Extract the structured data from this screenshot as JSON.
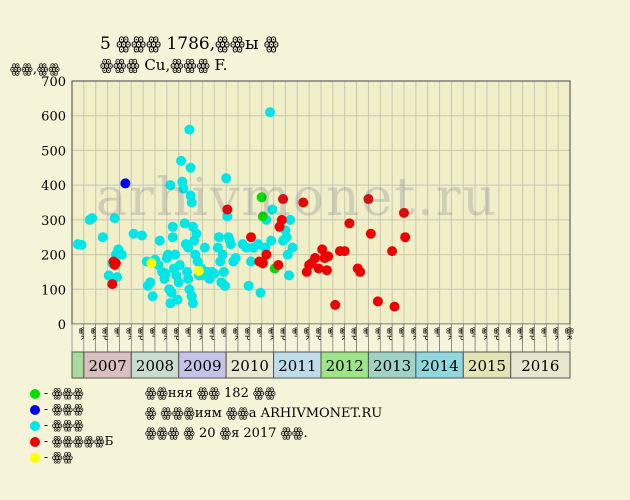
{
  "header": {
    "title": "5 ꙮꙮꙮ 1786,ꙮꙮы ꙮ",
    "subtitle": "ꙮꙮꙮ Cu,ꙮꙮꙮ F.",
    "ylabel": "ꙮꙮ,ꙮꙮ"
  },
  "watermark": "arhivmonet.ru",
  "legend": [
    {
      "label": "- ꙮꙮꙮ",
      "color": "#00dd00"
    },
    {
      "label": "- ꙮꙮꙮ",
      "color": "#0000ee"
    },
    {
      "label": "- ꙮꙮꙮ",
      "color": "#00e5e5"
    },
    {
      "label": "- ꙮꙮꙮꙮꙮБ",
      "color": "#ee0000"
    },
    {
      "label": "- ꙮꙮ",
      "color": "#ffff00"
    }
  ],
  "footer": {
    "line1": "ꙮꙮняя ꙮꙮ 182 ꙮꙮ",
    "line2": "ꙮ ꙮꙮꙮиям ꙮꙮа ARHIVMONET.RU",
    "line3": "ꙮꙮꙮ ꙮ 20 ꙮя 2017 ꙮꙮ."
  },
  "chart_data": {
    "type": "scatter",
    "ylim": [
      0,
      700
    ],
    "yticks": [
      0,
      100,
      200,
      300,
      400,
      500,
      600,
      700
    ],
    "grid": true,
    "month_labels": [
      "ꙮк",
      "ꙮк",
      "ꙮр",
      "ꙮг",
      "ꙮк",
      "ꙮр",
      "ꙮг",
      "ꙮк",
      "ꙮр",
      "ꙮг",
      "ꙮк",
      "ꙮр",
      "ꙮг",
      "ꙮк",
      "ꙮр",
      "ꙮг",
      "ꙮк",
      "ꙮр",
      "ꙮг",
      "ꙮк",
      "ꙮр",
      "ꙮг",
      "ꙮк",
      "ꙮр",
      "ꙮг",
      "ꙮк",
      "ꙮр",
      "ꙮг",
      "ꙮк",
      "ꙮр",
      "ꙮг",
      "ꙮк",
      "ꙮр",
      "ꙮг",
      "ꙮк",
      "ꙮр",
      "ꙮг",
      "ꙮк",
      "ꙮр",
      "ꙮг",
      "ꙮк",
      "ꙮк"
    ],
    "years": [
      {
        "label": "",
        "span": 1,
        "color": "#a8dba0"
      },
      {
        "label": "2007",
        "span": 4,
        "color": "#d9c0bf"
      },
      {
        "label": "2008",
        "span": 4,
        "color": "#c8dcd0"
      },
      {
        "label": "2009",
        "span": 4,
        "color": "#c5c4e8"
      },
      {
        "label": "2010",
        "span": 4,
        "color": "#e8e8d0"
      },
      {
        "label": "2011",
        "span": 4,
        "color": "#bfdcea"
      },
      {
        "label": "2012",
        "span": 4,
        "color": "#9ee58a"
      },
      {
        "label": "2013",
        "span": 4,
        "color": "#9fd3c6"
      },
      {
        "label": "2014",
        "span": 4,
        "color": "#90d8df"
      },
      {
        "label": "2015",
        "span": 4,
        "color": "#e3e3b6"
      },
      {
        "label": "2016",
        "span": 5,
        "color": "#e7e7cf"
      }
    ],
    "series": [
      {
        "color": "#00e5e5",
        "points": [
          [
            0.0,
            230
          ],
          [
            0.3,
            228
          ],
          [
            1.0,
            300
          ],
          [
            1.2,
            305
          ],
          [
            2.1,
            250
          ],
          [
            2.6,
            140
          ],
          [
            2.9,
            175
          ],
          [
            3.1,
            305
          ],
          [
            3.2,
            200
          ],
          [
            3.3,
            135
          ],
          [
            3.4,
            215
          ],
          [
            3.7,
            200
          ],
          [
            4.7,
            260
          ],
          [
            5.4,
            255
          ],
          [
            5.8,
            180
          ],
          [
            5.9,
            110
          ],
          [
            6.1,
            120
          ],
          [
            6.3,
            80
          ],
          [
            6.5,
            185
          ],
          [
            6.8,
            170
          ],
          [
            6.9,
            240
          ],
          [
            7.1,
            150
          ],
          [
            7.3,
            130
          ],
          [
            7.4,
            145
          ],
          [
            7.5,
            190
          ],
          [
            7.6,
            200
          ],
          [
            7.7,
            100
          ],
          [
            7.8,
            60
          ],
          [
            7.8,
            400
          ],
          [
            7.9,
            90
          ],
          [
            8.0,
            280
          ],
          [
            8.0,
            250
          ],
          [
            8.1,
            160
          ],
          [
            8.2,
            200
          ],
          [
            8.3,
            140
          ],
          [
            8.4,
            70
          ],
          [
            8.5,
            120
          ],
          [
            8.6,
            170
          ],
          [
            8.7,
            470
          ],
          [
            8.8,
            410
          ],
          [
            8.9,
            390
          ],
          [
            9.0,
            290
          ],
          [
            9.1,
            230
          ],
          [
            9.2,
            150
          ],
          [
            9.3,
            130
          ],
          [
            9.3,
            220
          ],
          [
            9.4,
            560
          ],
          [
            9.5,
            450
          ],
          [
            9.5,
            370
          ],
          [
            9.6,
            350
          ],
          [
            9.7,
            280
          ],
          [
            9.8,
            240
          ],
          [
            9.9,
            200
          ],
          [
            10.0,
            260
          ],
          [
            10.1,
            180
          ],
          [
            10.2,
            140
          ],
          [
            9.4,
            100
          ],
          [
            9.6,
            80
          ],
          [
            9.7,
            60
          ],
          [
            10.4,
            160
          ],
          [
            10.5,
            140
          ],
          [
            10.7,
            220
          ],
          [
            10.9,
            150
          ],
          [
            11.1,
            130
          ],
          [
            11.3,
            150
          ],
          [
            11.5,
            145
          ],
          [
            11.8,
            220
          ],
          [
            11.9,
            250
          ],
          [
            12.0,
            180
          ],
          [
            12.1,
            120
          ],
          [
            12.2,
            200
          ],
          [
            12.3,
            150
          ],
          [
            12.4,
            110
          ],
          [
            12.5,
            420
          ],
          [
            12.6,
            310
          ],
          [
            12.7,
            250
          ],
          [
            12.8,
            240
          ],
          [
            12.9,
            230
          ],
          [
            13.1,
            180
          ],
          [
            13.3,
            190
          ],
          [
            13.9,
            230
          ],
          [
            14.2,
            220
          ],
          [
            14.4,
            110
          ],
          [
            14.6,
            180
          ],
          [
            14.8,
            220
          ],
          [
            15.2,
            230
          ],
          [
            15.4,
            90
          ],
          [
            15.6,
            180
          ],
          [
            15.8,
            220
          ],
          [
            15.9,
            300
          ],
          [
            16.2,
            610
          ],
          [
            16.3,
            240
          ],
          [
            16.4,
            330
          ],
          [
            17.3,
            240
          ],
          [
            17.5,
            270
          ],
          [
            17.6,
            250
          ],
          [
            17.7,
            200
          ],
          [
            17.8,
            140
          ],
          [
            17.9,
            300
          ],
          [
            18.1,
            220
          ]
        ]
      },
      {
        "color": "#0000ee",
        "points": [
          [
            4.0,
            405
          ]
        ]
      },
      {
        "color": "#ffff00",
        "points": [
          [
            6.2,
            175
          ],
          [
            10.2,
            153
          ]
        ]
      },
      {
        "color": "#00dd00",
        "points": [
          [
            15.5,
            365
          ],
          [
            15.6,
            310
          ],
          [
            16.6,
            160
          ]
        ]
      },
      {
        "color": "#ee0000",
        "points": [
          [
            3.0,
            180
          ],
          [
            3.1,
            170
          ],
          [
            3.2,
            175
          ],
          [
            2.9,
            115
          ],
          [
            12.6,
            330
          ],
          [
            14.6,
            250
          ],
          [
            15.3,
            180
          ],
          [
            15.6,
            175
          ],
          [
            15.9,
            200
          ],
          [
            16.9,
            170
          ],
          [
            17.0,
            280
          ],
          [
            17.2,
            300
          ],
          [
            17.3,
            360
          ],
          [
            19.0,
            350
          ],
          [
            19.3,
            150
          ],
          [
            19.5,
            170
          ],
          [
            19.7,
            175
          ],
          [
            20.0,
            190
          ],
          [
            20.3,
            160
          ],
          [
            20.6,
            215
          ],
          [
            20.8,
            190
          ],
          [
            21.0,
            155
          ],
          [
            21.1,
            195
          ],
          [
            21.7,
            55
          ],
          [
            22.1,
            210
          ],
          [
            22.5,
            210
          ],
          [
            22.9,
            290
          ],
          [
            23.6,
            160
          ],
          [
            23.8,
            150
          ],
          [
            24.5,
            360
          ],
          [
            24.7,
            260
          ],
          [
            25.3,
            65
          ],
          [
            26.5,
            210
          ],
          [
            26.7,
            50
          ],
          [
            27.5,
            320
          ],
          [
            27.6,
            250
          ]
        ]
      }
    ]
  }
}
